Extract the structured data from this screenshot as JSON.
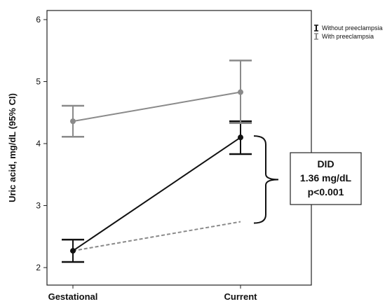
{
  "chart_data": {
    "type": "line",
    "x": [
      "Gestational",
      "Current"
    ],
    "ylabel": "Uric acid, mg/dL (95% CI)",
    "ylim": [
      2,
      6
    ],
    "yticks": [
      2,
      3,
      4,
      5,
      6
    ],
    "grid": false,
    "legend_position": "top-right",
    "series": [
      {
        "name": "Without preeclampsia",
        "color": "#111111",
        "values": [
          2.27,
          4.1
        ],
        "ci_low": [
          2.09,
          3.83
        ],
        "ci_high": [
          2.45,
          4.36
        ]
      },
      {
        "name": "With preeclampsia",
        "color": "#8a8a8a",
        "values": [
          4.36,
          4.83
        ],
        "ci_low": [
          4.11,
          4.33
        ],
        "ci_high": [
          4.61,
          5.34
        ]
      }
    ],
    "counterfactual_line": {
      "color": "#8a8a8a",
      "style": "dashed",
      "values": [
        2.27,
        2.74
      ]
    },
    "annotation": {
      "lines": [
        "DID",
        "1.36 mg/dL",
        "p<0.001"
      ],
      "bracket_range": [
        2.74,
        4.1
      ]
    }
  }
}
